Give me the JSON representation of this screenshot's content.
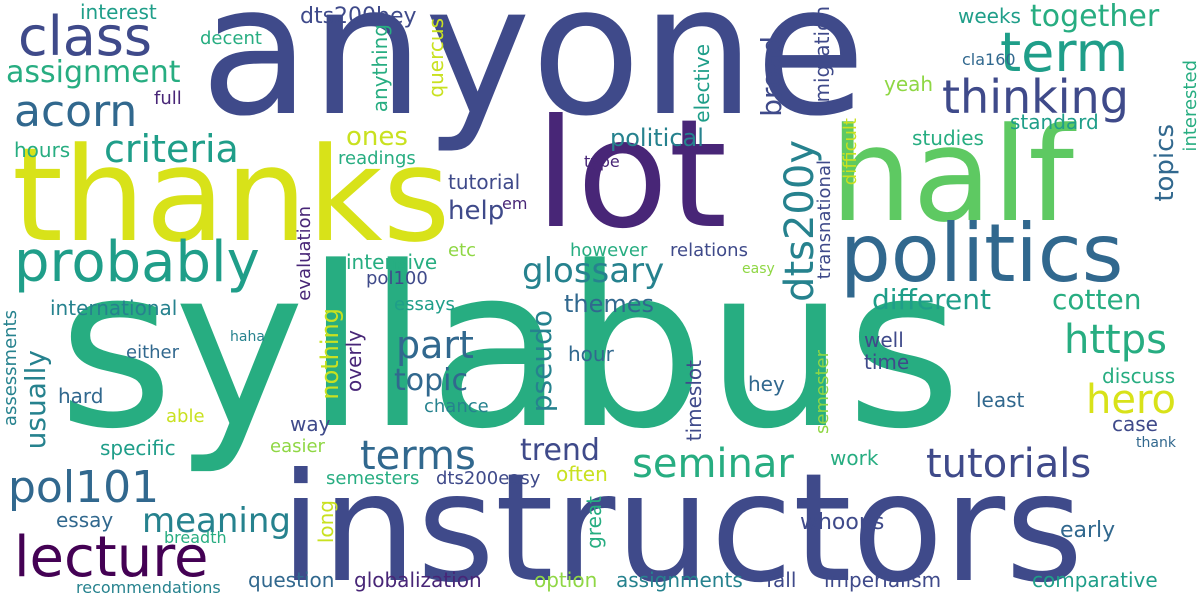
{
  "palette": {
    "d_purple": "#440154",
    "purple": "#482677",
    "indigo": "#3f4a8a",
    "blue": "#31688e",
    "teal_blue": "#26828e",
    "teal": "#1f9e89",
    "green": "#27ad81",
    "lime_green": "#5ec962",
    "light_green": "#8fd744",
    "yellow": "#c9e120",
    "bright_yellow": "#d8e219"
  },
  "words": [
    "anyone",
    "syllabus",
    "instructors",
    "thanks",
    "lot",
    "half",
    "politics",
    "probably",
    "class",
    "term",
    "acorn",
    "thinking",
    "criteria",
    "assignment",
    "together",
    "weeks",
    "interest",
    "decent",
    "full",
    "dts200hey",
    "anything",
    "quercus",
    "elective",
    "migration",
    "cla160",
    "yeah",
    "broad",
    "dts200y",
    "political",
    "tutorial",
    "hours",
    "readings",
    "ones",
    "help",
    "em",
    "standard",
    "studies",
    "topics",
    "interested",
    "difficult",
    "type",
    "transnational",
    "glossary",
    "different",
    "cotten",
    "https",
    "hero",
    "pol100",
    "etc",
    "however",
    "relations",
    "easy",
    "intensive",
    "evaluation",
    "international",
    "essays",
    "nothing",
    "pseudo",
    "part",
    "topic",
    "themes",
    "overly",
    "either",
    "haha",
    "well",
    "time",
    "hour",
    "hey",
    "discuss",
    "usually",
    "hard",
    "assessments",
    "able",
    "chance",
    "timeslot",
    "least",
    "semester",
    "case",
    "thank",
    "way",
    "specific",
    "easier",
    "terms",
    "trend",
    "seminar",
    "tutorials",
    "pol101",
    "work",
    "often",
    "semesters",
    "dts200easy",
    "meaning",
    "lecture",
    "essay",
    "breadth",
    "long",
    "great",
    "whoops",
    "early",
    "question",
    "option",
    "recommendations",
    "globalization",
    "assignments",
    "fall",
    "imperialism",
    "comparative"
  ]
}
